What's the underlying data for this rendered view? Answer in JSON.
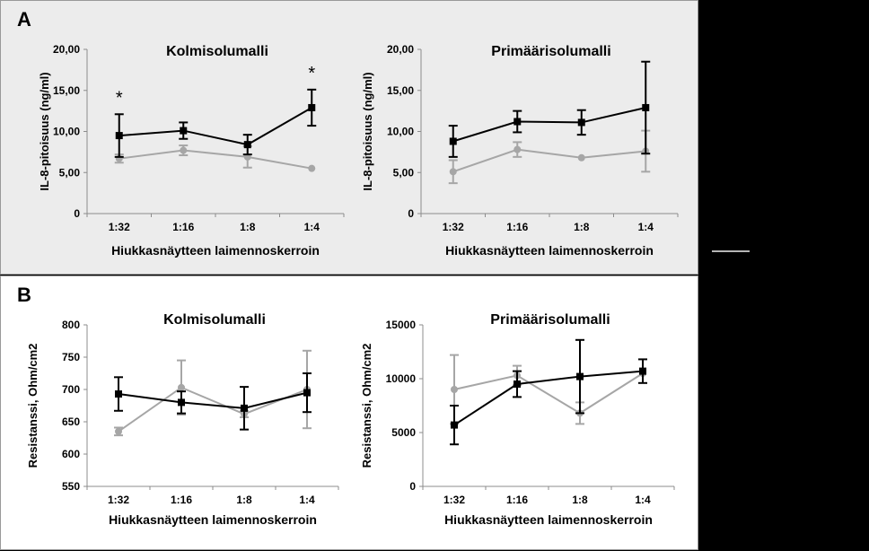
{
  "panels": {
    "A": {
      "label": "A"
    },
    "B": {
      "label": "B"
    }
  },
  "colors": {
    "series1": "#000000",
    "series2": "#a6a6a6"
  },
  "chart_data": [
    {
      "type": "line",
      "title": "Kolmisolumalli",
      "xlabel": "Hiukkasnäytteen laimennoskerroin",
      "ylabel": "IL-8-pitoisuus (ng/ml)",
      "categories": [
        "1:32",
        "1:16",
        "1:8",
        "1:4"
      ],
      "ylim": [
        0,
        20
      ],
      "yticks": [
        0,
        5,
        10,
        15,
        20
      ],
      "yticklabels": [
        "0",
        "5,00",
        "10,00",
        "15,00",
        "20,00"
      ],
      "series": [
        {
          "values": [
            9.5,
            10.1,
            8.4,
            12.9
          ],
          "errors": [
            2.6,
            1.0,
            1.2,
            2.2
          ],
          "marker": "square",
          "color": "#000000"
        },
        {
          "values": [
            6.7,
            7.7,
            6.9,
            5.5
          ],
          "errors": [
            0.5,
            0.6,
            1.3,
            0.0
          ],
          "marker": "circle",
          "color": "#a6a6a6"
        }
      ],
      "annotations": [
        {
          "category": "1:32",
          "text": "*"
        },
        {
          "category": "1:4",
          "text": "*"
        }
      ],
      "grid": false
    },
    {
      "type": "line",
      "title": "Primäärisolumalli",
      "xlabel": "Hiukkasnäytteen laimennoskerroin",
      "ylabel": "IL-8-pitoisuus (ng/ml)",
      "categories": [
        "1:32",
        "1:16",
        "1:8",
        "1:4"
      ],
      "ylim": [
        0,
        20
      ],
      "yticks": [
        0,
        5,
        10,
        15,
        20
      ],
      "yticklabels": [
        "0",
        "5,00",
        "10,00",
        "15,00",
        "20,00"
      ],
      "series": [
        {
          "values": [
            8.8,
            11.2,
            11.1,
            12.9
          ],
          "errors": [
            1.9,
            1.3,
            1.5,
            5.6
          ],
          "marker": "square",
          "color": "#000000"
        },
        {
          "values": [
            5.1,
            7.8,
            6.8,
            7.6
          ],
          "errors": [
            1.4,
            0.9,
            0.0,
            2.5
          ],
          "marker": "circle",
          "color": "#a6a6a6"
        }
      ],
      "annotations": [],
      "grid": false
    },
    {
      "type": "line",
      "title": "Kolmisolumalli",
      "xlabel": "Hiukkasnäytteen laimennoskerroin",
      "ylabel": "Resistanssi, Ohm/cm2",
      "categories": [
        "1:32",
        "1:16",
        "1:8",
        "1:4"
      ],
      "ylim": [
        550,
        800
      ],
      "yticks": [
        550,
        600,
        650,
        700,
        750,
        800
      ],
      "yticklabels": [
        "550",
        "600",
        "650",
        "700",
        "750",
        "800"
      ],
      "series": [
        {
          "values": [
            693,
            680,
            671,
            695
          ],
          "errors": [
            26,
            17,
            33,
            30
          ],
          "marker": "square",
          "color": "#000000"
        },
        {
          "values": [
            635,
            703,
            662,
            700
          ],
          "errors": [
            6,
            42,
            5,
            60
          ],
          "marker": "circle",
          "color": "#a6a6a6"
        }
      ],
      "annotations": [],
      "grid": false
    },
    {
      "type": "line",
      "title": "Primäärisolumalli",
      "xlabel": "Hiukkasnäytteen laimennoskerroin",
      "ylabel": "Resistanssi, Ohm/cm2",
      "categories": [
        "1:32",
        "1:16",
        "1:8",
        "1:4"
      ],
      "ylim": [
        0,
        15000
      ],
      "yticks": [
        0,
        5000,
        10000,
        15000
      ],
      "yticklabels": [
        "0",
        "5000",
        "10000",
        "15000"
      ],
      "series": [
        {
          "values": [
            5700,
            9500,
            10200,
            10700
          ],
          "errors": [
            1800,
            1200,
            3400,
            1100
          ],
          "marker": "square",
          "color": "#000000"
        },
        {
          "values": [
            9000,
            10300,
            6800,
            10500
          ],
          "errors": [
            3200,
            900,
            1000,
            0
          ],
          "marker": "circle",
          "color": "#a6a6a6"
        }
      ],
      "annotations": [],
      "grid": false
    }
  ]
}
